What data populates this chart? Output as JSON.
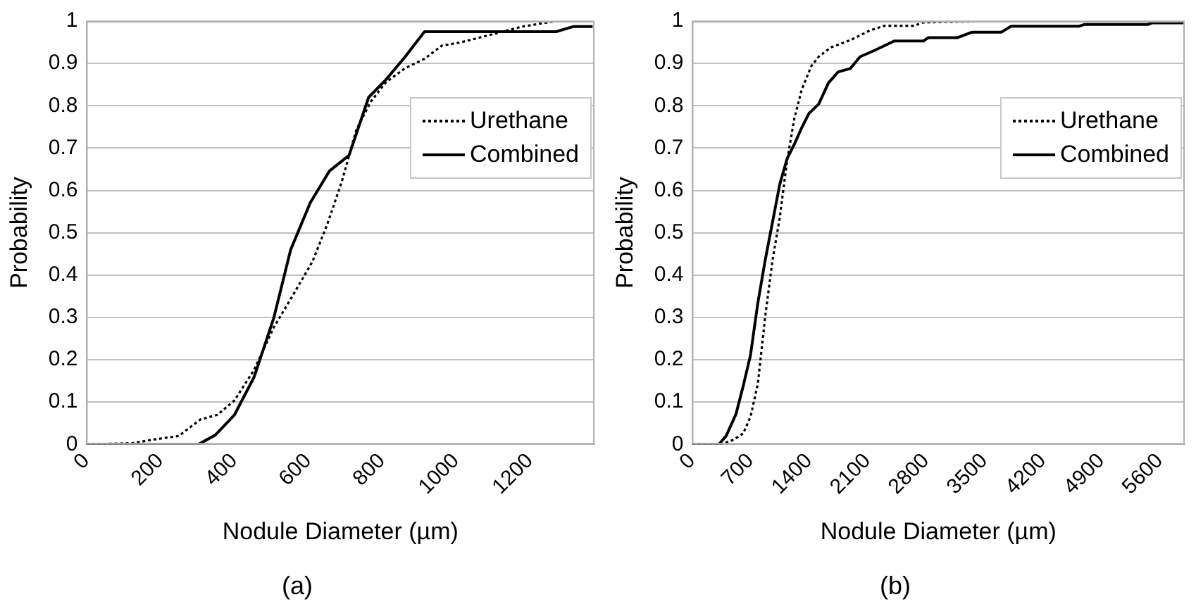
{
  "chart_data": [
    {
      "type": "line",
      "title": "(a)",
      "xlabel": "Nodule Diameter (µm)",
      "ylabel": "Probability",
      "xlim": [
        0,
        1375
      ],
      "xticks": [
        0,
        200,
        400,
        600,
        800,
        1000,
        1200
      ],
      "ylim": [
        0,
        1
      ],
      "yticks": [
        0,
        0.1,
        0.2,
        0.3,
        0.4,
        0.5,
        0.6,
        0.7,
        0.8,
        0.9,
        1
      ],
      "grid": "y",
      "legend": "right",
      "marker": "none",
      "series": [
        {
          "name": "Urethane",
          "color": "#000000",
          "line_style": "dotted",
          "x": [
            0,
            125,
            178,
            250,
            309,
            355,
            401,
            454,
            507,
            560,
            612,
            652,
            691,
            731,
            770,
            810,
            863,
            915,
            962,
            1014,
            1113,
            1179,
            1271,
            1370
          ],
          "values": [
            0,
            0.003,
            0.011,
            0.02,
            0.059,
            0.07,
            0.104,
            0.176,
            0.276,
            0.354,
            0.432,
            0.52,
            0.62,
            0.744,
            0.81,
            0.855,
            0.889,
            0.911,
            0.942,
            0.95,
            0.972,
            0.987,
            1,
            1
          ]
        },
        {
          "name": "Combined",
          "color": "#000000",
          "line_style": "solid",
          "x": [
            0,
            303,
            349,
            401,
            454,
            507,
            553,
            606,
            658,
            711,
            764,
            810,
            863,
            915,
            1271,
            1317,
            1370
          ],
          "values": [
            0,
            0,
            0.022,
            0.07,
            0.159,
            0.298,
            0.46,
            0.571,
            0.646,
            0.683,
            0.82,
            0.861,
            0.916,
            0.975,
            0.975,
            0.987,
            0.987
          ]
        }
      ]
    },
    {
      "type": "line",
      "title": "(b)",
      "xlabel": "Nodule Diameter (µm)",
      "ylabel": "Probability",
      "xlim": [
        0,
        5900
      ],
      "xticks": [
        0,
        700,
        1400,
        2100,
        2800,
        3500,
        4200,
        4900,
        5600
      ],
      "ylim": [
        0,
        1
      ],
      "yticks": [
        0,
        0.1,
        0.2,
        0.3,
        0.4,
        0.5,
        0.6,
        0.7,
        0.8,
        0.9,
        1
      ],
      "grid": "y",
      "legend": "right",
      "marker": "none",
      "series": [
        {
          "name": "Urethane",
          "color": "#000000",
          "line_style": "dotted",
          "x": [
            0,
            350,
            496,
            613,
            700,
            788,
            875,
            963,
            1050,
            1138,
            1225,
            1313,
            1429,
            1517,
            1663,
            1896,
            2130,
            2305,
            2655,
            2771,
            3617
          ],
          "values": [
            0,
            0,
            0.011,
            0.026,
            0.065,
            0.143,
            0.3,
            0.434,
            0.535,
            0.67,
            0.77,
            0.838,
            0.894,
            0.916,
            0.938,
            0.955,
            0.978,
            0.989,
            0.989,
            0.997,
            1
          ]
        },
        {
          "name": "Combined",
          "color": "#000000",
          "line_style": "solid",
          "x": [
            0,
            321,
            408,
            525,
            613,
            700,
            788,
            875,
            963,
            1050,
            1138,
            1225,
            1313,
            1400,
            1517,
            1633,
            1750,
            1896,
            2013,
            2188,
            2421,
            2771,
            2830,
            3180,
            3355,
            3705,
            3821,
            4638,
            4696,
            5455,
            5513,
            5900
          ],
          "values": [
            0,
            0,
            0.02,
            0.071,
            0.138,
            0.211,
            0.334,
            0.434,
            0.524,
            0.614,
            0.675,
            0.709,
            0.748,
            0.782,
            0.804,
            0.854,
            0.88,
            0.888,
            0.916,
            0.931,
            0.953,
            0.953,
            0.961,
            0.961,
            0.974,
            0.974,
            0.988,
            0.988,
            0.992,
            0.992,
            0.996,
            0.996
          ]
        }
      ]
    }
  ]
}
